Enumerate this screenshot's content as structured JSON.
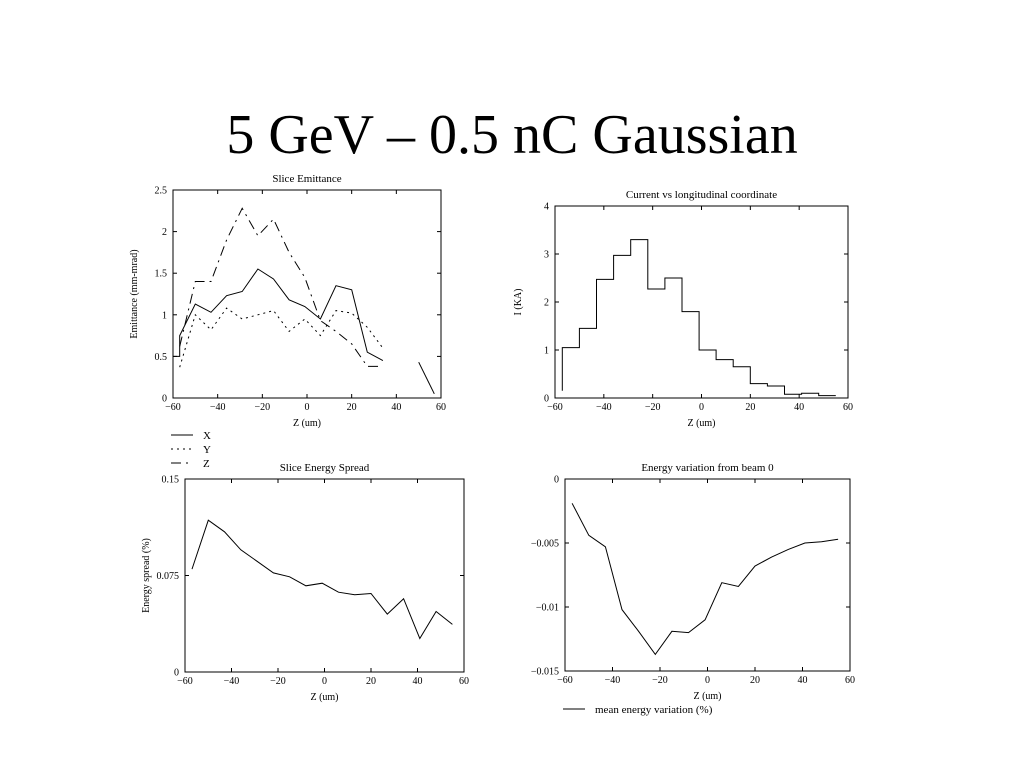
{
  "slide": {
    "title": "5 GeV – 0.5 nC Gaussian"
  },
  "chart_data": [
    {
      "id": "emittance",
      "type": "line",
      "title": "Slice Emittance",
      "xlabel": "Z (um)",
      "ylabel": "Emittance (mm-mrad)",
      "xlim": [
        -60,
        60
      ],
      "ylim": [
        0,
        2.5
      ],
      "xticks": [
        -60,
        -40,
        -20,
        0,
        20,
        40,
        60
      ],
      "yticks": [
        0,
        0.5,
        1,
        1.5,
        2,
        2.5
      ],
      "xtick_labels": [
        "−60",
        "−40",
        "−20",
        "0",
        "20",
        "40",
        "60"
      ],
      "ytick_labels": [
        "0",
        "0.5",
        "1",
        "1.5",
        "2",
        "2.5"
      ],
      "legend_position": "below",
      "series": [
        {
          "name": "X",
          "style": "solid",
          "segments": [
            [
              [
                -60,
                0.5
              ],
              [
                -57,
                0.5
              ],
              [
                -57,
                0.75
              ],
              [
                -50,
                1.13
              ],
              [
                -43,
                1.03
              ],
              [
                -36,
                1.23
              ],
              [
                -29,
                1.28
              ],
              [
                -22,
                1.55
              ],
              [
                -15,
                1.43
              ],
              [
                -8,
                1.18
              ],
              [
                -1,
                1.1
              ],
              [
                6,
                0.95
              ],
              [
                13,
                1.35
              ],
              [
                20,
                1.3
              ],
              [
                27,
                0.55
              ],
              [
                34,
                0.45
              ]
            ],
            [
              [
                50,
                0.43
              ],
              [
                57,
                0.05
              ]
            ]
          ]
        },
        {
          "name": "Y",
          "style": "dotted",
          "segments": [
            [
              [
                -57,
                0.37
              ],
              [
                -50,
                1.0
              ],
              [
                -43,
                0.82
              ],
              [
                -36,
                1.08
              ],
              [
                -29,
                0.95
              ],
              [
                -22,
                1.0
              ],
              [
                -15,
                1.05
              ],
              [
                -8,
                0.8
              ],
              [
                -1,
                0.95
              ],
              [
                6,
                0.75
              ],
              [
                13,
                1.05
              ],
              [
                20,
                1.02
              ],
              [
                27,
                0.85
              ],
              [
                34,
                0.6
              ]
            ]
          ]
        },
        {
          "name": "Z",
          "style": "dashdot",
          "segments": [
            [
              [
                -57,
                0.62
              ],
              [
                -50,
                1.4
              ],
              [
                -43,
                1.4
              ],
              [
                -36,
                1.9
              ],
              [
                -29,
                2.28
              ],
              [
                -22,
                1.95
              ],
              [
                -15,
                2.15
              ],
              [
                -8,
                1.75
              ],
              [
                -1,
                1.45
              ],
              [
                6,
                0.93
              ],
              [
                13,
                0.8
              ],
              [
                20,
                0.65
              ],
              [
                27,
                0.38
              ],
              [
                34,
                0.38
              ]
            ]
          ]
        }
      ]
    },
    {
      "id": "current",
      "type": "line",
      "title": "Current vs longitudinal coordinate",
      "xlabel": "Z (um)",
      "ylabel": "I (KA)",
      "xlim": [
        -60,
        60
      ],
      "ylim": [
        0,
        4
      ],
      "xticks": [
        -60,
        -40,
        -20,
        0,
        20,
        40,
        60
      ],
      "yticks": [
        0,
        1,
        2,
        3,
        4
      ],
      "xtick_labels": [
        "−60",
        "−40",
        "−20",
        "0",
        "20",
        "40",
        "60"
      ],
      "ytick_labels": [
        "0",
        "1",
        "2",
        "3",
        "4"
      ],
      "step": true,
      "bin_edges": [
        -57,
        -50,
        -43,
        -36,
        -29,
        -22,
        -15,
        -8,
        -1,
        6,
        13,
        20,
        27,
        34,
        41,
        48,
        55
      ],
      "values": [
        1.05,
        1.45,
        2.47,
        2.97,
        3.3,
        2.27,
        2.5,
        1.8,
        1.0,
        0.8,
        0.65,
        0.3,
        0.25,
        0.08,
        0.1,
        0.05
      ],
      "start_value": 0.15
    },
    {
      "id": "energy-spread",
      "type": "line",
      "title": "Slice Energy Spread",
      "xlabel": "Z (um)",
      "ylabel": "Energy spread (%)",
      "xlim": [
        -60,
        60
      ],
      "ylim": [
        0,
        0.15
      ],
      "xticks": [
        -60,
        -40,
        -20,
        0,
        20,
        40,
        60
      ],
      "yticks": [
        0,
        0.075,
        0.15
      ],
      "xtick_labels": [
        "−60",
        "−40",
        "−20",
        "0",
        "20",
        "40",
        "60"
      ],
      "ytick_labels": [
        "0",
        "0.075",
        "0.15"
      ],
      "x": [
        -57,
        -50,
        -43,
        -36,
        -29,
        -22,
        -15,
        -8,
        -1,
        6,
        13,
        20,
        27,
        34,
        41,
        48,
        55
      ],
      "values": [
        0.08,
        0.118,
        0.109,
        0.095,
        0.086,
        0.077,
        0.074,
        0.067,
        0.069,
        0.062,
        0.06,
        0.061,
        0.045,
        0.057,
        0.026,
        0.047,
        0.037
      ]
    },
    {
      "id": "energy-variation",
      "type": "line",
      "title": "Energy variation from beam 0",
      "xlabel": "Z (um)",
      "xlim": [
        -60,
        60
      ],
      "ylim": [
        -0.015,
        0
      ],
      "xticks": [
        -60,
        -40,
        -20,
        0,
        20,
        40,
        60
      ],
      "yticks": [
        -0.015,
        -0.01,
        -0.005,
        0
      ],
      "xtick_labels": [
        "−60",
        "−40",
        "−20",
        "0",
        "20",
        "40",
        "60"
      ],
      "ytick_labels": [
        "−0.015",
        "−0.01",
        "−0.005",
        "0"
      ],
      "legend_position": "below",
      "series": [
        {
          "name": "mean energy variation (%)",
          "x": [
            -57,
            -50,
            -43,
            -36,
            -29,
            -22,
            -15,
            -8,
            -1,
            6,
            13,
            20,
            27,
            34,
            41,
            48,
            55
          ],
          "values": [
            -0.0019,
            -0.0044,
            -0.0053,
            -0.0102,
            -0.0119,
            -0.0137,
            -0.0119,
            -0.012,
            -0.011,
            -0.0081,
            -0.0084,
            -0.0068,
            -0.0061,
            -0.0055,
            -0.005,
            -0.0049,
            -0.0047
          ]
        }
      ]
    }
  ]
}
